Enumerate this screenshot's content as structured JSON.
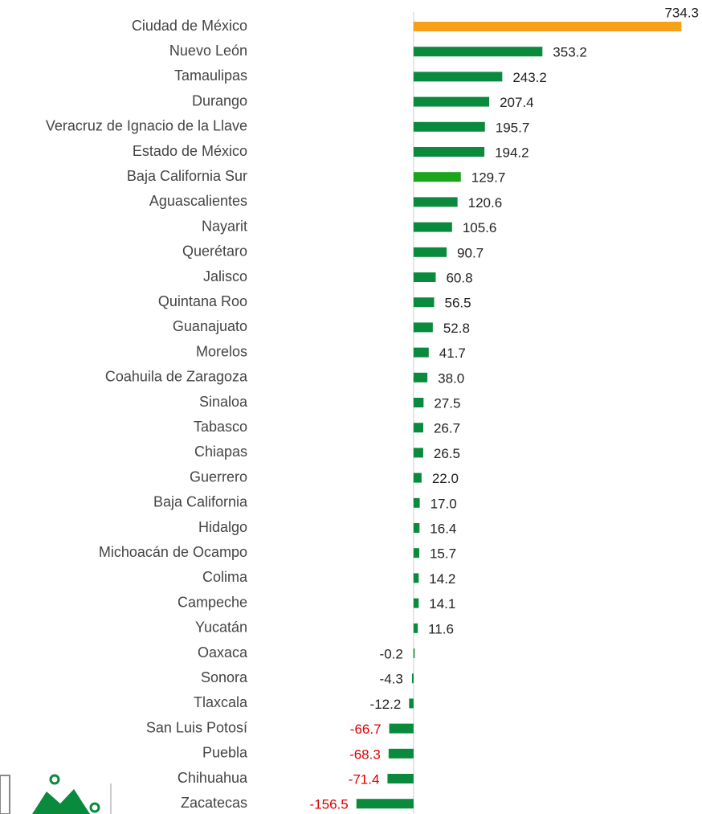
{
  "chart_data": {
    "type": "bar",
    "orientation": "horizontal",
    "categories": [
      "Ciudad de México",
      "Nuevo León",
      "Tamaulipas",
      "Durango",
      "Veracruz de Ignacio de la Llave",
      "Estado de México",
      "Baja California Sur",
      "Aguascalientes",
      "Nayarit",
      "Querétaro",
      "Jalisco",
      "Quintana Roo",
      "Guanajuato",
      "Morelos",
      "Coahuila de Zaragoza",
      "Sinaloa",
      "Tabasco",
      "Chiapas",
      "Guerrero",
      "Baja California",
      "Hidalgo",
      "Michoacán de Ocampo",
      "Colima",
      "Campeche",
      "Yucatán",
      "Oaxaca",
      "Sonora",
      "Tlaxcala",
      "San Luis Potosí",
      "Puebla",
      "Chihuahua",
      "Zacatecas"
    ],
    "values": [
      734.3,
      353.2,
      243.2,
      207.4,
      195.7,
      194.2,
      129.7,
      120.6,
      105.6,
      90.7,
      60.8,
      56.5,
      52.8,
      41.7,
      38.0,
      27.5,
      26.7,
      26.5,
      22.0,
      17.0,
      16.4,
      15.7,
      14.2,
      14.1,
      11.6,
      -0.2,
      -4.3,
      -12.2,
      -66.7,
      -68.3,
      -71.4,
      -156.5
    ],
    "value_labels": [
      "734.3",
      "353.2",
      "243.2",
      "207.4",
      "195.7",
      "194.2",
      "129.7",
      "120.6",
      "105.6",
      "90.7",
      "60.8",
      "56.5",
      "52.8",
      "41.7",
      "38.0",
      "27.5",
      "26.7",
      "26.5",
      "22.0",
      "17.0",
      "16.4",
      "15.7",
      "14.2",
      "14.1",
      "11.6",
      "-0.2",
      "-4.3",
      "-12.2",
      "-66.7",
      "-68.3",
      "-71.4",
      "-156.5"
    ],
    "colors": [
      "#f7a11a",
      "#0a8a3c",
      "#0a8a3c",
      "#0a8a3c",
      "#0a8a3c",
      "#0a8a3c",
      "#1aa51a",
      "#0a8a3c",
      "#0a8a3c",
      "#0a8a3c",
      "#0a8a3c",
      "#0a8a3c",
      "#0a8a3c",
      "#0a8a3c",
      "#0a8a3c",
      "#0a8a3c",
      "#0a8a3c",
      "#0a8a3c",
      "#0a8a3c",
      "#0a8a3c",
      "#0a8a3c",
      "#0a8a3c",
      "#0a8a3c",
      "#0a8a3c",
      "#0a8a3c",
      "#0a8a3c",
      "#0a8a3c",
      "#0a8a3c",
      "#0a8a3c",
      "#0a8a3c",
      "#0a8a3c",
      "#0a8a3c"
    ],
    "label_colors": [
      "#222",
      "#222",
      "#222",
      "#222",
      "#222",
      "#222",
      "#222",
      "#222",
      "#222",
      "#222",
      "#222",
      "#222",
      "#222",
      "#222",
      "#222",
      "#222",
      "#222",
      "#222",
      "#222",
      "#222",
      "#222",
      "#222",
      "#222",
      "#222",
      "#222",
      "#222",
      "#222",
      "#222",
      "#e00000",
      "#e00000",
      "#e00000",
      "#e00000"
    ],
    "xlim": [
      -200,
      740
    ]
  }
}
